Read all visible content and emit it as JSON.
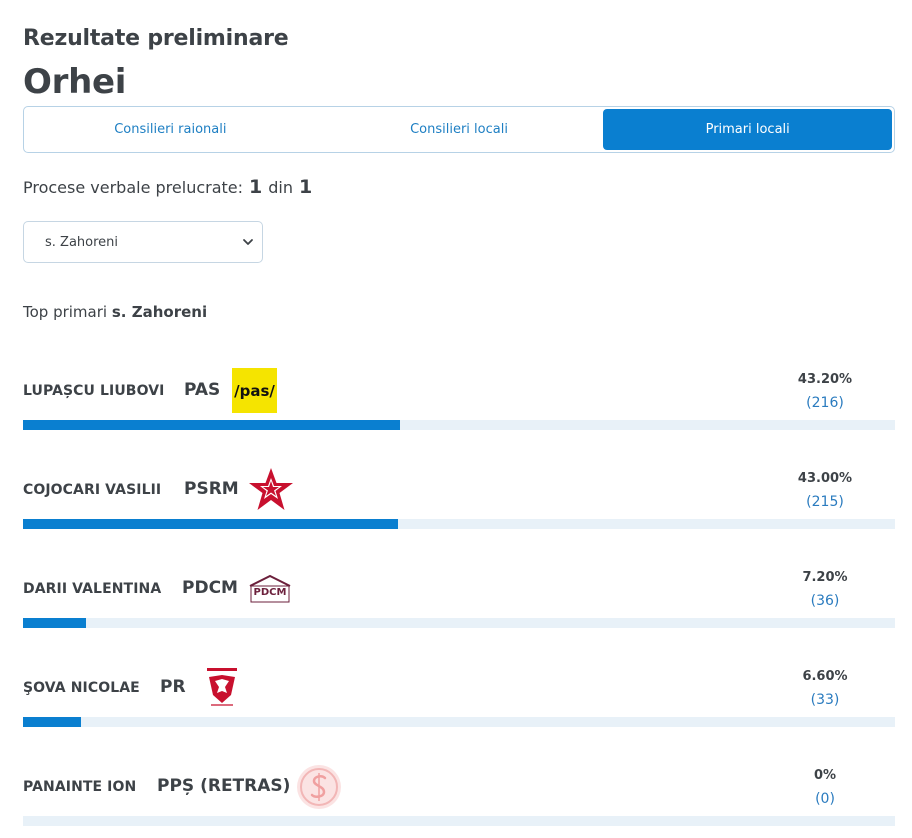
{
  "header": {
    "subtitle": "Rezultate preliminare",
    "title": "Orhei"
  },
  "tabs": [
    {
      "label": "Consilieri raionali",
      "active": false
    },
    {
      "label": "Consilieri locali",
      "active": false
    },
    {
      "label": "Primari locali",
      "active": true
    }
  ],
  "processed": {
    "label": "Procese verbale prelucrate:",
    "done": "1",
    "separator": "din",
    "total": "1"
  },
  "locality_select": {
    "value": "s. Zahoreni",
    "icon": "chevron-down-icon"
  },
  "top_label": {
    "prefix": "Top primari",
    "locality": "s. Zahoreni"
  },
  "colors": {
    "accent": "#0a7fd0",
    "track": "#e8f1f8",
    "votes_text": "#2a7bbf"
  },
  "candidates": [
    {
      "name": "LUPAȘCU LIUBOVI",
      "party": "PAS",
      "logo_text": "/pas/",
      "logo_icon": "pas-logo",
      "percent": "43.20%",
      "votes": "(216)",
      "share": 43.2
    },
    {
      "name": "COJOCARI VASILII",
      "party": "PSRM",
      "logo_icon": "psrm-star-logo",
      "percent": "43.00%",
      "votes": "(215)",
      "share": 43.0
    },
    {
      "name": "DARII VALENTINA",
      "party": "PDCM",
      "logo_text": "PDCM",
      "logo_icon": "pdcm-logo",
      "percent": "7.20%",
      "votes": "(36)",
      "share": 7.2
    },
    {
      "name": "ŞOVA NICOLAE",
      "party": "PR",
      "logo_icon": "pr-eagle-logo",
      "percent": "6.60%",
      "votes": "(33)",
      "share": 6.6
    },
    {
      "name": "PANAINTE ION",
      "party": "PPȘ (RETRAS)",
      "logo_icon": "pps-logo",
      "percent": "0%",
      "votes": "(0)",
      "share": 0
    }
  ]
}
